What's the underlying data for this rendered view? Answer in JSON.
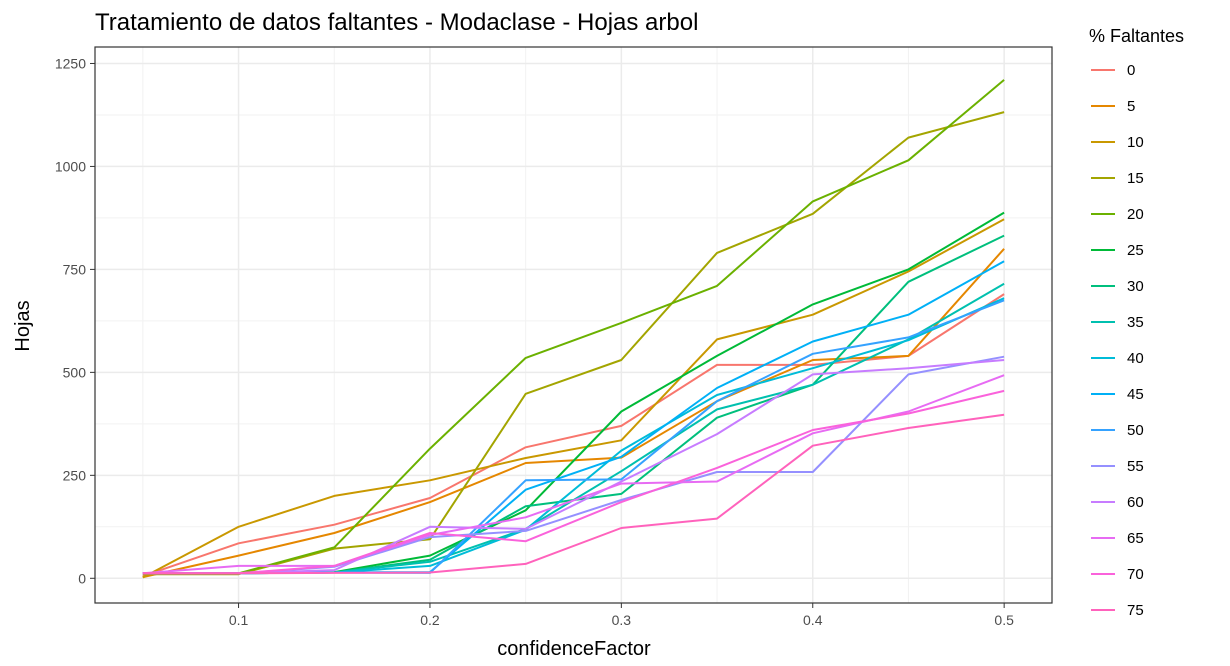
{
  "chart_data": {
    "type": "line",
    "title": "Tratamiento de datos faltantes - Modaclase - Hojas arbol",
    "xlabel": "confidenceFactor",
    "ylabel": "Hojas",
    "xlim": [
      0.025,
      0.525
    ],
    "ylim": [
      -60,
      1290
    ],
    "x_ticks": [
      0.1,
      0.2,
      0.3,
      0.4,
      0.5
    ],
    "x_tick_labels": [
      "0.1",
      "0.2",
      "0.3",
      "0.4",
      "0.5"
    ],
    "y_ticks": [
      0,
      250,
      500,
      750,
      1000,
      1250
    ],
    "y_tick_labels": [
      "0",
      "250",
      "500",
      "750",
      "1000",
      "1250"
    ],
    "grid": true,
    "legend_position": "right",
    "legend_title": "% Faltantes",
    "x": [
      0.05,
      0.1,
      0.15,
      0.2,
      0.25,
      0.3,
      0.35,
      0.4,
      0.45,
      0.5
    ],
    "series": [
      {
        "name": "0",
        "color": "#F8766D",
        "values": [
          5,
          85,
          130,
          195,
          318,
          370,
          518,
          518,
          540,
          690
        ]
      },
      {
        "name": "5",
        "color": "#E58700",
        "values": [
          3,
          55,
          110,
          185,
          280,
          293,
          430,
          530,
          540,
          800
        ]
      },
      {
        "name": "10",
        "color": "#C99800",
        "values": [
          2,
          125,
          200,
          238,
          292,
          335,
          580,
          640,
          745,
          872
        ]
      },
      {
        "name": "15",
        "color": "#A3A500",
        "values": [
          10,
          10,
          72,
          95,
          448,
          530,
          790,
          885,
          1070,
          1132
        ]
      },
      {
        "name": "20",
        "color": "#6BB100",
        "values": [
          12,
          12,
          75,
          315,
          535,
          620,
          710,
          915,
          1015,
          1210
        ]
      },
      {
        "name": "25",
        "color": "#00BA38",
        "values": [
          12,
          12,
          15,
          55,
          165,
          405,
          540,
          665,
          750,
          888
        ]
      },
      {
        "name": "30",
        "color": "#00BF7D",
        "values": [
          12,
          12,
          14,
          45,
          175,
          205,
          390,
          470,
          720,
          832
        ]
      },
      {
        "name": "35",
        "color": "#00C0AF",
        "values": [
          12,
          12,
          14,
          40,
          120,
          260,
          410,
          470,
          580,
          715
        ]
      },
      {
        "name": "40",
        "color": "#00BCD8",
        "values": [
          12,
          12,
          14,
          30,
          118,
          310,
          445,
          510,
          578,
          680
        ]
      },
      {
        "name": "45",
        "color": "#00B0F6",
        "values": [
          12,
          12,
          14,
          15,
          215,
          295,
          462,
          575,
          640,
          770
        ]
      },
      {
        "name": "50",
        "color": "#35A2FF",
        "values": [
          12,
          12,
          14,
          13,
          238,
          240,
          430,
          545,
          585,
          675
        ]
      },
      {
        "name": "55",
        "color": "#9590FF",
        "values": [
          12,
          12,
          28,
          100,
          115,
          190,
          258,
          258,
          495,
          538
        ]
      },
      {
        "name": "60",
        "color": "#C77CFF",
        "values": [
          12,
          12,
          20,
          125,
          120,
          235,
          350,
          495,
          510,
          530
        ]
      },
      {
        "name": "65",
        "color": "#E76BF3",
        "values": [
          12,
          30,
          30,
          105,
          148,
          230,
          235,
          352,
          405,
          493
        ]
      },
      {
        "name": "70",
        "color": "#FA62DB",
        "values": [
          12,
          12,
          30,
          110,
          90,
          185,
          268,
          360,
          400,
          455
        ]
      },
      {
        "name": "75",
        "color": "#FF62BC",
        "values": [
          12,
          12,
          13,
          14,
          35,
          122,
          145,
          322,
          365,
          397
        ]
      }
    ]
  }
}
